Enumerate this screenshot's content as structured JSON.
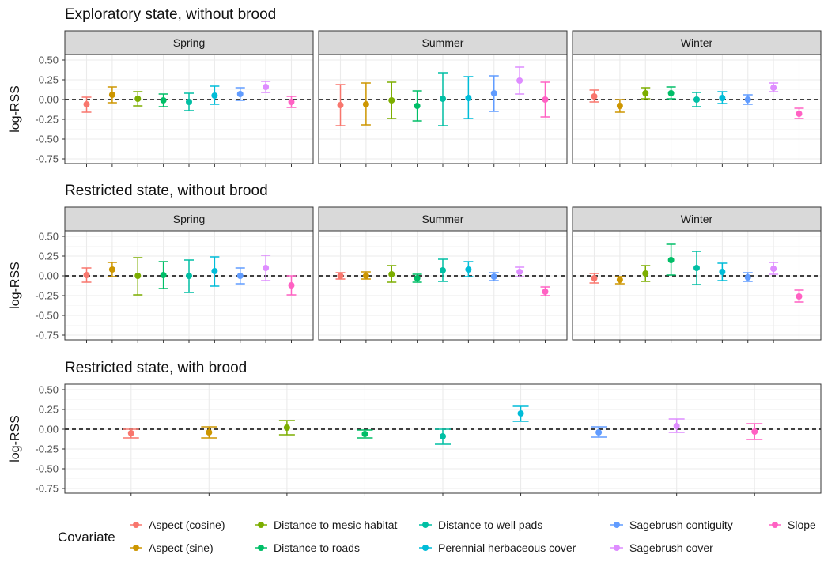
{
  "legend": {
    "title": "Covariate",
    "items": [
      {
        "label": "Aspect (cosine)",
        "color": "#F8766D"
      },
      {
        "label": "Aspect (sine)",
        "color": "#CD9600"
      },
      {
        "label": "Distance to mesic habitat",
        "color": "#7CAE00"
      },
      {
        "label": "Distance to roads",
        "color": "#00BE67"
      },
      {
        "label": "Distance to well pads",
        "color": "#00BFA4"
      },
      {
        "label": "Perennial herbaceous cover",
        "color": "#00BCD8"
      },
      {
        "label": "Sagebrush contiguity",
        "color": "#619CFF"
      },
      {
        "label": "Sagebrush cover",
        "color": "#DE8CFF"
      },
      {
        "label": "Slope",
        "color": "#FF61C3"
      }
    ]
  },
  "chart_data": [
    {
      "type": "scatter",
      "title": "Exploratory state, without brood",
      "ylabel": "log-RSS",
      "ylim": [
        -0.8,
        0.55
      ],
      "yticks": [
        "0.50",
        "0.25",
        "0.00",
        "-0.25",
        "-0.50",
        "-0.75"
      ],
      "yvalues": [
        0.5,
        0.25,
        0,
        -0.25,
        -0.5,
        -0.75
      ],
      "reference_line": 0,
      "facets": [
        {
          "label": "Spring",
          "points": [
            {
              "est": -0.06,
              "lo": -0.16,
              "hi": 0.03
            },
            {
              "est": 0.06,
              "lo": -0.04,
              "hi": 0.16
            },
            {
              "est": 0.01,
              "lo": -0.08,
              "hi": 0.1
            },
            {
              "est": -0.01,
              "lo": -0.09,
              "hi": 0.07
            },
            {
              "est": -0.03,
              "lo": -0.14,
              "hi": 0.08
            },
            {
              "est": 0.05,
              "lo": -0.06,
              "hi": 0.17
            },
            {
              "est": 0.07,
              "lo": -0.01,
              "hi": 0.15
            },
            {
              "est": 0.16,
              "lo": 0.09,
              "hi": 0.23
            },
            {
              "est": -0.03,
              "lo": -0.1,
              "hi": 0.04
            }
          ]
        },
        {
          "label": "Summer",
          "points": [
            {
              "est": -0.07,
              "lo": -0.33,
              "hi": 0.19
            },
            {
              "est": -0.06,
              "lo": -0.32,
              "hi": 0.21
            },
            {
              "est": -0.01,
              "lo": -0.24,
              "hi": 0.22
            },
            {
              "est": -0.08,
              "lo": -0.27,
              "hi": 0.11
            },
            {
              "est": 0.01,
              "lo": -0.33,
              "hi": 0.34
            },
            {
              "est": 0.02,
              "lo": -0.24,
              "hi": 0.29
            },
            {
              "est": 0.08,
              "lo": -0.15,
              "hi": 0.3
            },
            {
              "est": 0.24,
              "lo": 0.07,
              "hi": 0.41
            },
            {
              "est": 0.0,
              "lo": -0.22,
              "hi": 0.22
            }
          ]
        },
        {
          "label": "Winter",
          "points": [
            {
              "est": 0.04,
              "lo": -0.03,
              "hi": 0.12
            },
            {
              "est": -0.08,
              "lo": -0.16,
              "hi": 0.0
            },
            {
              "est": 0.08,
              "lo": 0.01,
              "hi": 0.15
            },
            {
              "est": 0.08,
              "lo": 0.01,
              "hi": 0.16
            },
            {
              "est": 0.0,
              "lo": -0.09,
              "hi": 0.09
            },
            {
              "est": 0.02,
              "lo": -0.05,
              "hi": 0.1
            },
            {
              "est": 0.0,
              "lo": -0.06,
              "hi": 0.06
            },
            {
              "est": 0.15,
              "lo": 0.1,
              "hi": 0.21
            },
            {
              "est": -0.18,
              "lo": -0.24,
              "hi": -0.11
            }
          ]
        }
      ]
    },
    {
      "type": "scatter",
      "title": "Restricted state, without brood",
      "ylabel": "log-RSS",
      "ylim": [
        -0.8,
        0.55
      ],
      "yticks": [
        "0.50",
        "0.25",
        "0.00",
        "-0.25",
        "-0.50",
        "-0.75"
      ],
      "yvalues": [
        0.5,
        0.25,
        0,
        -0.25,
        -0.5,
        -0.75
      ],
      "reference_line": 0,
      "facets": [
        {
          "label": "Spring",
          "points": [
            {
              "est": 0.01,
              "lo": -0.08,
              "hi": 0.1
            },
            {
              "est": 0.08,
              "lo": -0.01,
              "hi": 0.17
            },
            {
              "est": 0.0,
              "lo": -0.24,
              "hi": 0.23
            },
            {
              "est": 0.01,
              "lo": -0.16,
              "hi": 0.18
            },
            {
              "est": 0.0,
              "lo": -0.21,
              "hi": 0.2
            },
            {
              "est": 0.06,
              "lo": -0.13,
              "hi": 0.24
            },
            {
              "est": 0.0,
              "lo": -0.1,
              "hi": 0.1
            },
            {
              "est": 0.1,
              "lo": -0.06,
              "hi": 0.26
            },
            {
              "est": -0.12,
              "lo": -0.24,
              "hi": 0.0
            }
          ]
        },
        {
          "label": "Summer",
          "points": [
            {
              "est": 0.0,
              "lo": -0.04,
              "hi": 0.04
            },
            {
              "est": 0.0,
              "lo": -0.04,
              "hi": 0.05
            },
            {
              "est": 0.02,
              "lo": -0.08,
              "hi": 0.13
            },
            {
              "est": -0.03,
              "lo": -0.08,
              "hi": 0.02
            },
            {
              "est": 0.07,
              "lo": -0.07,
              "hi": 0.21
            },
            {
              "est": 0.08,
              "lo": -0.01,
              "hi": 0.18
            },
            {
              "est": -0.01,
              "lo": -0.06,
              "hi": 0.04
            },
            {
              "est": 0.05,
              "lo": -0.01,
              "hi": 0.11
            },
            {
              "est": -0.2,
              "lo": -0.25,
              "hi": -0.14
            }
          ]
        },
        {
          "label": "Winter",
          "points": [
            {
              "est": -0.03,
              "lo": -0.09,
              "hi": 0.03
            },
            {
              "est": -0.05,
              "lo": -0.1,
              "hi": -0.01
            },
            {
              "est": 0.03,
              "lo": -0.07,
              "hi": 0.13
            },
            {
              "est": 0.2,
              "lo": 0.01,
              "hi": 0.4
            },
            {
              "est": 0.1,
              "lo": -0.11,
              "hi": 0.31
            },
            {
              "est": 0.05,
              "lo": -0.06,
              "hi": 0.16
            },
            {
              "est": -0.02,
              "lo": -0.07,
              "hi": 0.04
            },
            {
              "est": 0.09,
              "lo": 0.02,
              "hi": 0.17
            },
            {
              "est": -0.26,
              "lo": -0.33,
              "hi": -0.18
            }
          ]
        }
      ]
    },
    {
      "type": "scatter",
      "title": "Restricted state, with brood",
      "ylabel": "log-RSS",
      "ylim": [
        -0.8,
        0.55
      ],
      "yticks": [
        "0.50",
        "0.25",
        "0.00",
        "-0.25",
        "-0.50",
        "-0.75"
      ],
      "yvalues": [
        0.5,
        0.25,
        0,
        -0.25,
        -0.5,
        -0.75
      ],
      "reference_line": 0,
      "facets": [
        {
          "label": "",
          "points": [
            {
              "est": -0.05,
              "lo": -0.11,
              "hi": 0.0
            },
            {
              "est": -0.04,
              "lo": -0.11,
              "hi": 0.03
            },
            {
              "est": 0.02,
              "lo": -0.07,
              "hi": 0.11
            },
            {
              "est": -0.06,
              "lo": -0.11,
              "hi": -0.01
            },
            {
              "est": -0.09,
              "lo": -0.19,
              "hi": 0.0
            },
            {
              "est": 0.2,
              "lo": 0.1,
              "hi": 0.29
            },
            {
              "est": -0.04,
              "lo": -0.1,
              "hi": 0.03
            },
            {
              "est": 0.04,
              "lo": -0.04,
              "hi": 0.13
            },
            {
              "est": -0.03,
              "lo": -0.13,
              "hi": 0.07
            }
          ]
        }
      ]
    }
  ]
}
